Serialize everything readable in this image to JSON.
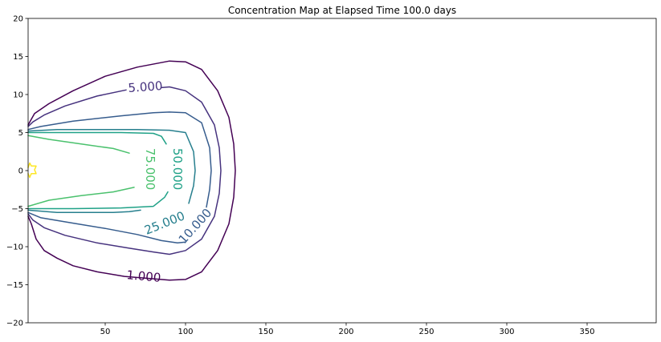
{
  "chart_data": {
    "type": "contour",
    "title": "Concentration Map at Elapsed Time 100.0 days",
    "xlabel": "",
    "ylabel": "",
    "xlim": [
      2,
      393
    ],
    "ylim": [
      -20,
      20
    ],
    "x_ticks": [
      50,
      100,
      150,
      200,
      250,
      300,
      350
    ],
    "y_ticks": [
      -20,
      -15,
      -10,
      -5,
      0,
      5,
      10,
      15,
      20
    ],
    "grid": false,
    "contours": [
      {
        "level": 1.0,
        "label": "1.000",
        "color": "#440154",
        "label_pos": [
          74,
          -13.9
        ],
        "label_rotation": 5,
        "segments": [
          [
            [
              2,
              -6
            ],
            [
              4,
              -7
            ],
            [
              7,
              -9
            ],
            [
              12,
              -10.5
            ],
            [
              20,
              -11.5
            ],
            [
              30,
              -12.5
            ],
            [
              45,
              -13.3
            ],
            [
              62,
              -13.9
            ],
            [
              90,
              -14.4
            ],
            [
              100,
              -14.3
            ],
            [
              110,
              -13.3
            ],
            [
              120,
              -10.5
            ],
            [
              127,
              -7
            ],
            [
              130,
              -3.5
            ],
            [
              131,
              0
            ],
            [
              130,
              3.5
            ],
            [
              127,
              7
            ],
            [
              120,
              10.5
            ],
            [
              110,
              13.3
            ],
            [
              100,
              14.3
            ],
            [
              90,
              14.4
            ],
            [
              70,
              13.6
            ],
            [
              50,
              12.4
            ],
            [
              30,
              10.5
            ],
            [
              15,
              8.8
            ],
            [
              6,
              7.5
            ],
            [
              2,
              6
            ]
          ]
        ]
      },
      {
        "level": 5.0,
        "label": "5.000",
        "color": "#46327e",
        "label_pos": [
          75,
          11.0
        ],
        "label_rotation": -4,
        "segments": [
          [
            [
              2,
              -5.7
            ],
            [
              5,
              -6.5
            ],
            [
              12,
              -7.5
            ],
            [
              25,
              -8.5
            ],
            [
              45,
              -9.5
            ],
            [
              65,
              -10.2
            ],
            [
              80,
              -10.7
            ],
            [
              90,
              -11
            ],
            [
              100,
              -10.5
            ],
            [
              110,
              -9
            ],
            [
              118,
              -6
            ],
            [
              121,
              -3
            ],
            [
              122,
              0
            ],
            [
              121,
              3
            ],
            [
              118,
              6
            ],
            [
              110,
              9
            ],
            [
              100,
              10.5
            ],
            [
              90,
              11
            ],
            [
              85,
              10.9
            ]
          ],
          [
            [
              63,
              10.6
            ],
            [
              45,
              9.8
            ],
            [
              25,
              8.5
            ],
            [
              12,
              7.3
            ],
            [
              5,
              6.4
            ],
            [
              2,
              5.8
            ]
          ]
        ]
      },
      {
        "level": 10.0,
        "label": "10.000",
        "color": "#365c8d",
        "label_pos": [
          106,
          -7.3
        ],
        "label_rotation": -48,
        "segments": [
          [
            [
              2,
              -5.5
            ],
            [
              10,
              -6.2
            ],
            [
              30,
              -6.9
            ],
            [
              50,
              -7.6
            ],
            [
              70,
              -8.4
            ],
            [
              85,
              -9.2
            ],
            [
              95,
              -9.5
            ],
            [
              100,
              -9.4
            ]
          ],
          [
            [
              113,
              -4.8
            ],
            [
              115,
              -2.5
            ],
            [
              116,
              0
            ],
            [
              115,
              3
            ],
            [
              110,
              6.3
            ],
            [
              100,
              7.6
            ],
            [
              90,
              7.7
            ],
            [
              80,
              7.6
            ],
            [
              60,
              7.2
            ],
            [
              30,
              6.5
            ],
            [
              10,
              5.8
            ],
            [
              2,
              5.4
            ]
          ]
        ]
      },
      {
        "level": 25.0,
        "label": "25.000",
        "color": "#277f8e",
        "label_pos": [
          87,
          -6.9
        ],
        "label_rotation": -22,
        "segments": [
          [
            [
              2,
              -5.2
            ],
            [
              20,
              -5.5
            ],
            [
              40,
              -5.5
            ],
            [
              55,
              -5.5
            ],
            [
              65,
              -5.4
            ],
            [
              72,
              -5.2
            ]
          ],
          [
            [
              102,
              -4.3
            ],
            [
              105,
              -2
            ],
            [
              106,
              0
            ],
            [
              105,
              2.5
            ],
            [
              100,
              5
            ],
            [
              90,
              5.3
            ],
            [
              70,
              5.4
            ],
            [
              50,
              5.4
            ],
            [
              20,
              5.4
            ],
            [
              2,
              5.2
            ]
          ]
        ]
      },
      {
        "level": 50.0,
        "label": "50.000",
        "color": "#1fa187",
        "label_pos": [
          95,
          0.2
        ],
        "label_rotation": 90,
        "segments": [
          [
            [
              2,
              -5.0
            ],
            [
              30,
              -5.0
            ],
            [
              60,
              -4.9
            ],
            [
              80,
              -4.7
            ],
            [
              87,
              -3.5
            ],
            [
              89,
              -2.8
            ]
          ],
          [
            [
              88,
              3.5
            ],
            [
              85,
              4.5
            ],
            [
              80,
              4.9
            ],
            [
              60,
              5.0
            ],
            [
              30,
              5.0
            ],
            [
              2,
              5.0
            ]
          ]
        ]
      },
      {
        "level": 75.0,
        "label": "75.000",
        "color": "#4ac16d",
        "label_pos": [
          78,
          0.2
        ],
        "label_rotation": 90,
        "segments": [
          [
            [
              2,
              -4.7
            ],
            [
              15,
              -3.9
            ],
            [
              35,
              -3.3
            ],
            [
              55,
              -2.8
            ],
            [
              68,
              -2.2
            ]
          ],
          [
            [
              65,
              2.3
            ],
            [
              55,
              2.9
            ],
            [
              35,
              3.5
            ],
            [
              15,
              4.1
            ],
            [
              2,
              4.6
            ]
          ]
        ]
      },
      {
        "level": 100.0,
        "label": "",
        "color": "#fde725",
        "label_pos": null,
        "label_rotation": 0,
        "segments": [
          [
            [
              2,
              -0.4
            ],
            [
              3,
              -0.9
            ],
            [
              4,
              -0.4
            ],
            [
              7,
              -0.4
            ],
            [
              6,
              0.1
            ],
            [
              7,
              0.6
            ],
            [
              4,
              0.6
            ],
            [
              3,
              1
            ],
            [
              2,
              0.4
            ]
          ]
        ]
      }
    ]
  }
}
